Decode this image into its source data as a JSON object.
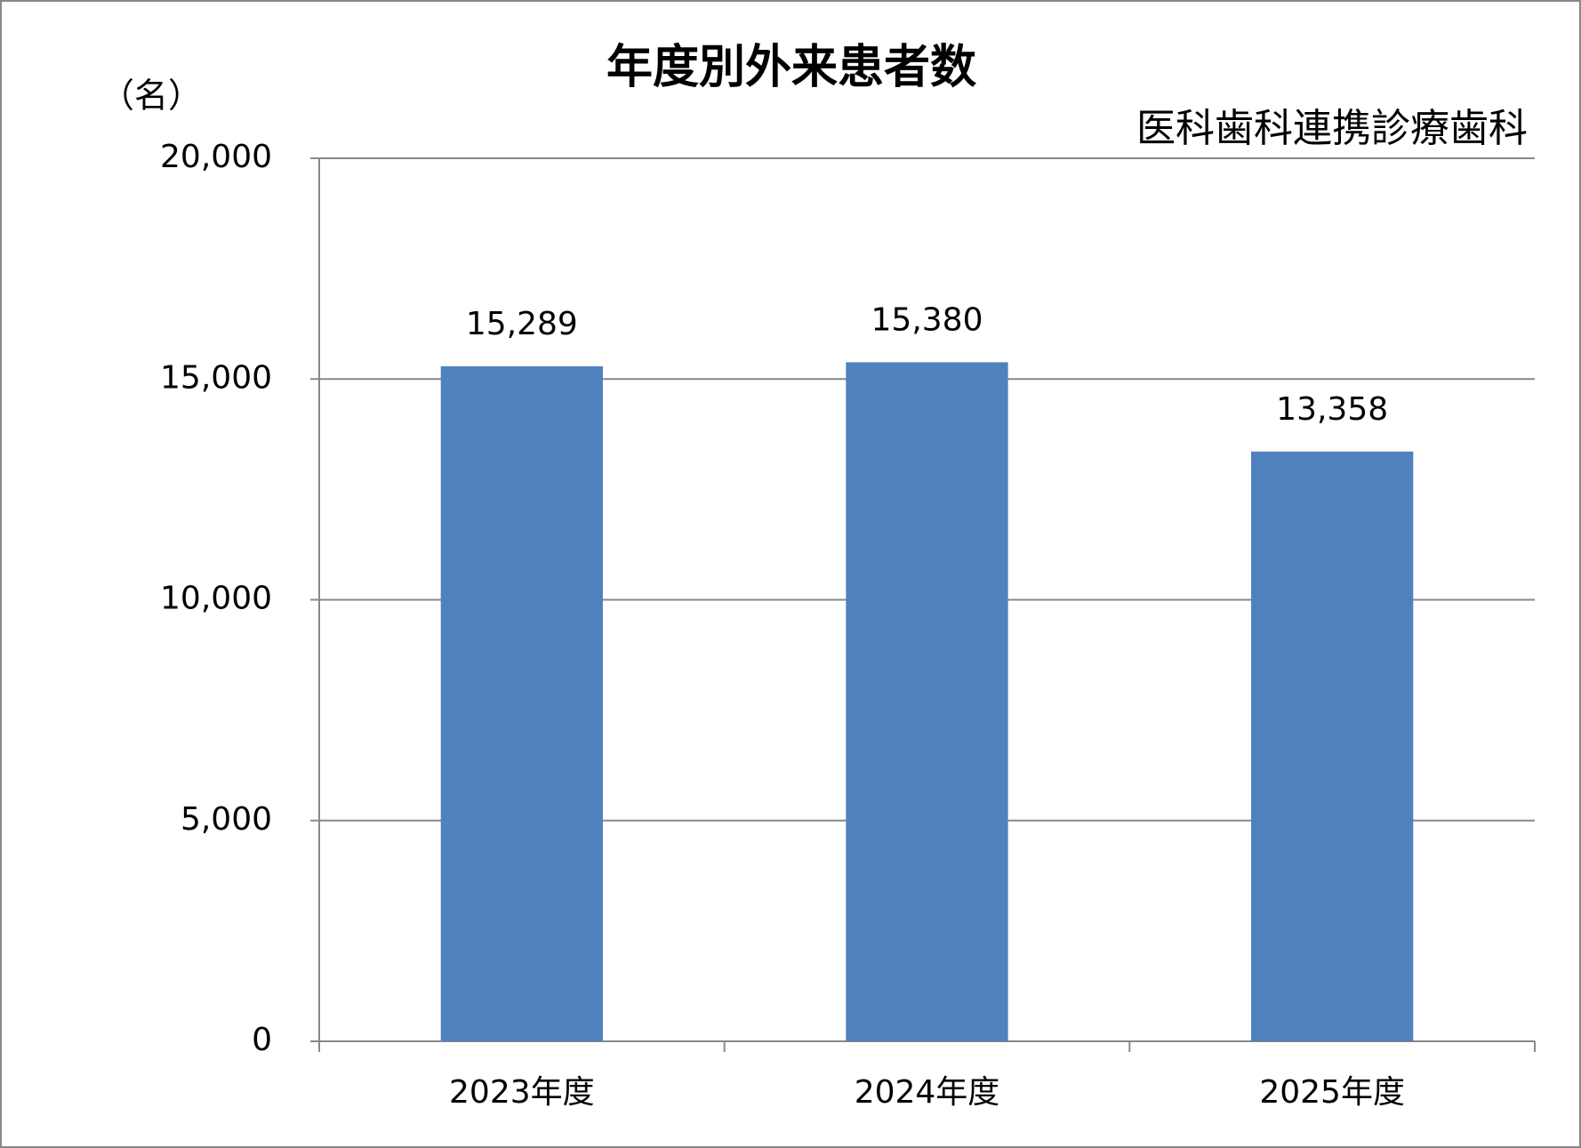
{
  "chart_data": {
    "type": "bar",
    "title": "年度別外来患者数",
    "subtitle": "医科歯科連携診療歯科",
    "y_label": "（名）",
    "categories": [
      "2023年度",
      "2024年度",
      "2025年度"
    ],
    "values": [
      15289,
      15380,
      13358
    ],
    "value_labels": [
      "15,289",
      "15,380",
      "13,358"
    ],
    "color": "#4f81bd",
    "ylim": [
      0,
      20000
    ],
    "yticks": [
      0,
      {
        "value": 5000,
        "label": "5,000"
      },
      {
        "value": 10000,
        "label": "10,000"
      },
      {
        "value": 15000,
        "label": "15,000"
      },
      {
        "value": 20000,
        "label": "20,000"
      }
    ],
    "grid": true
  }
}
